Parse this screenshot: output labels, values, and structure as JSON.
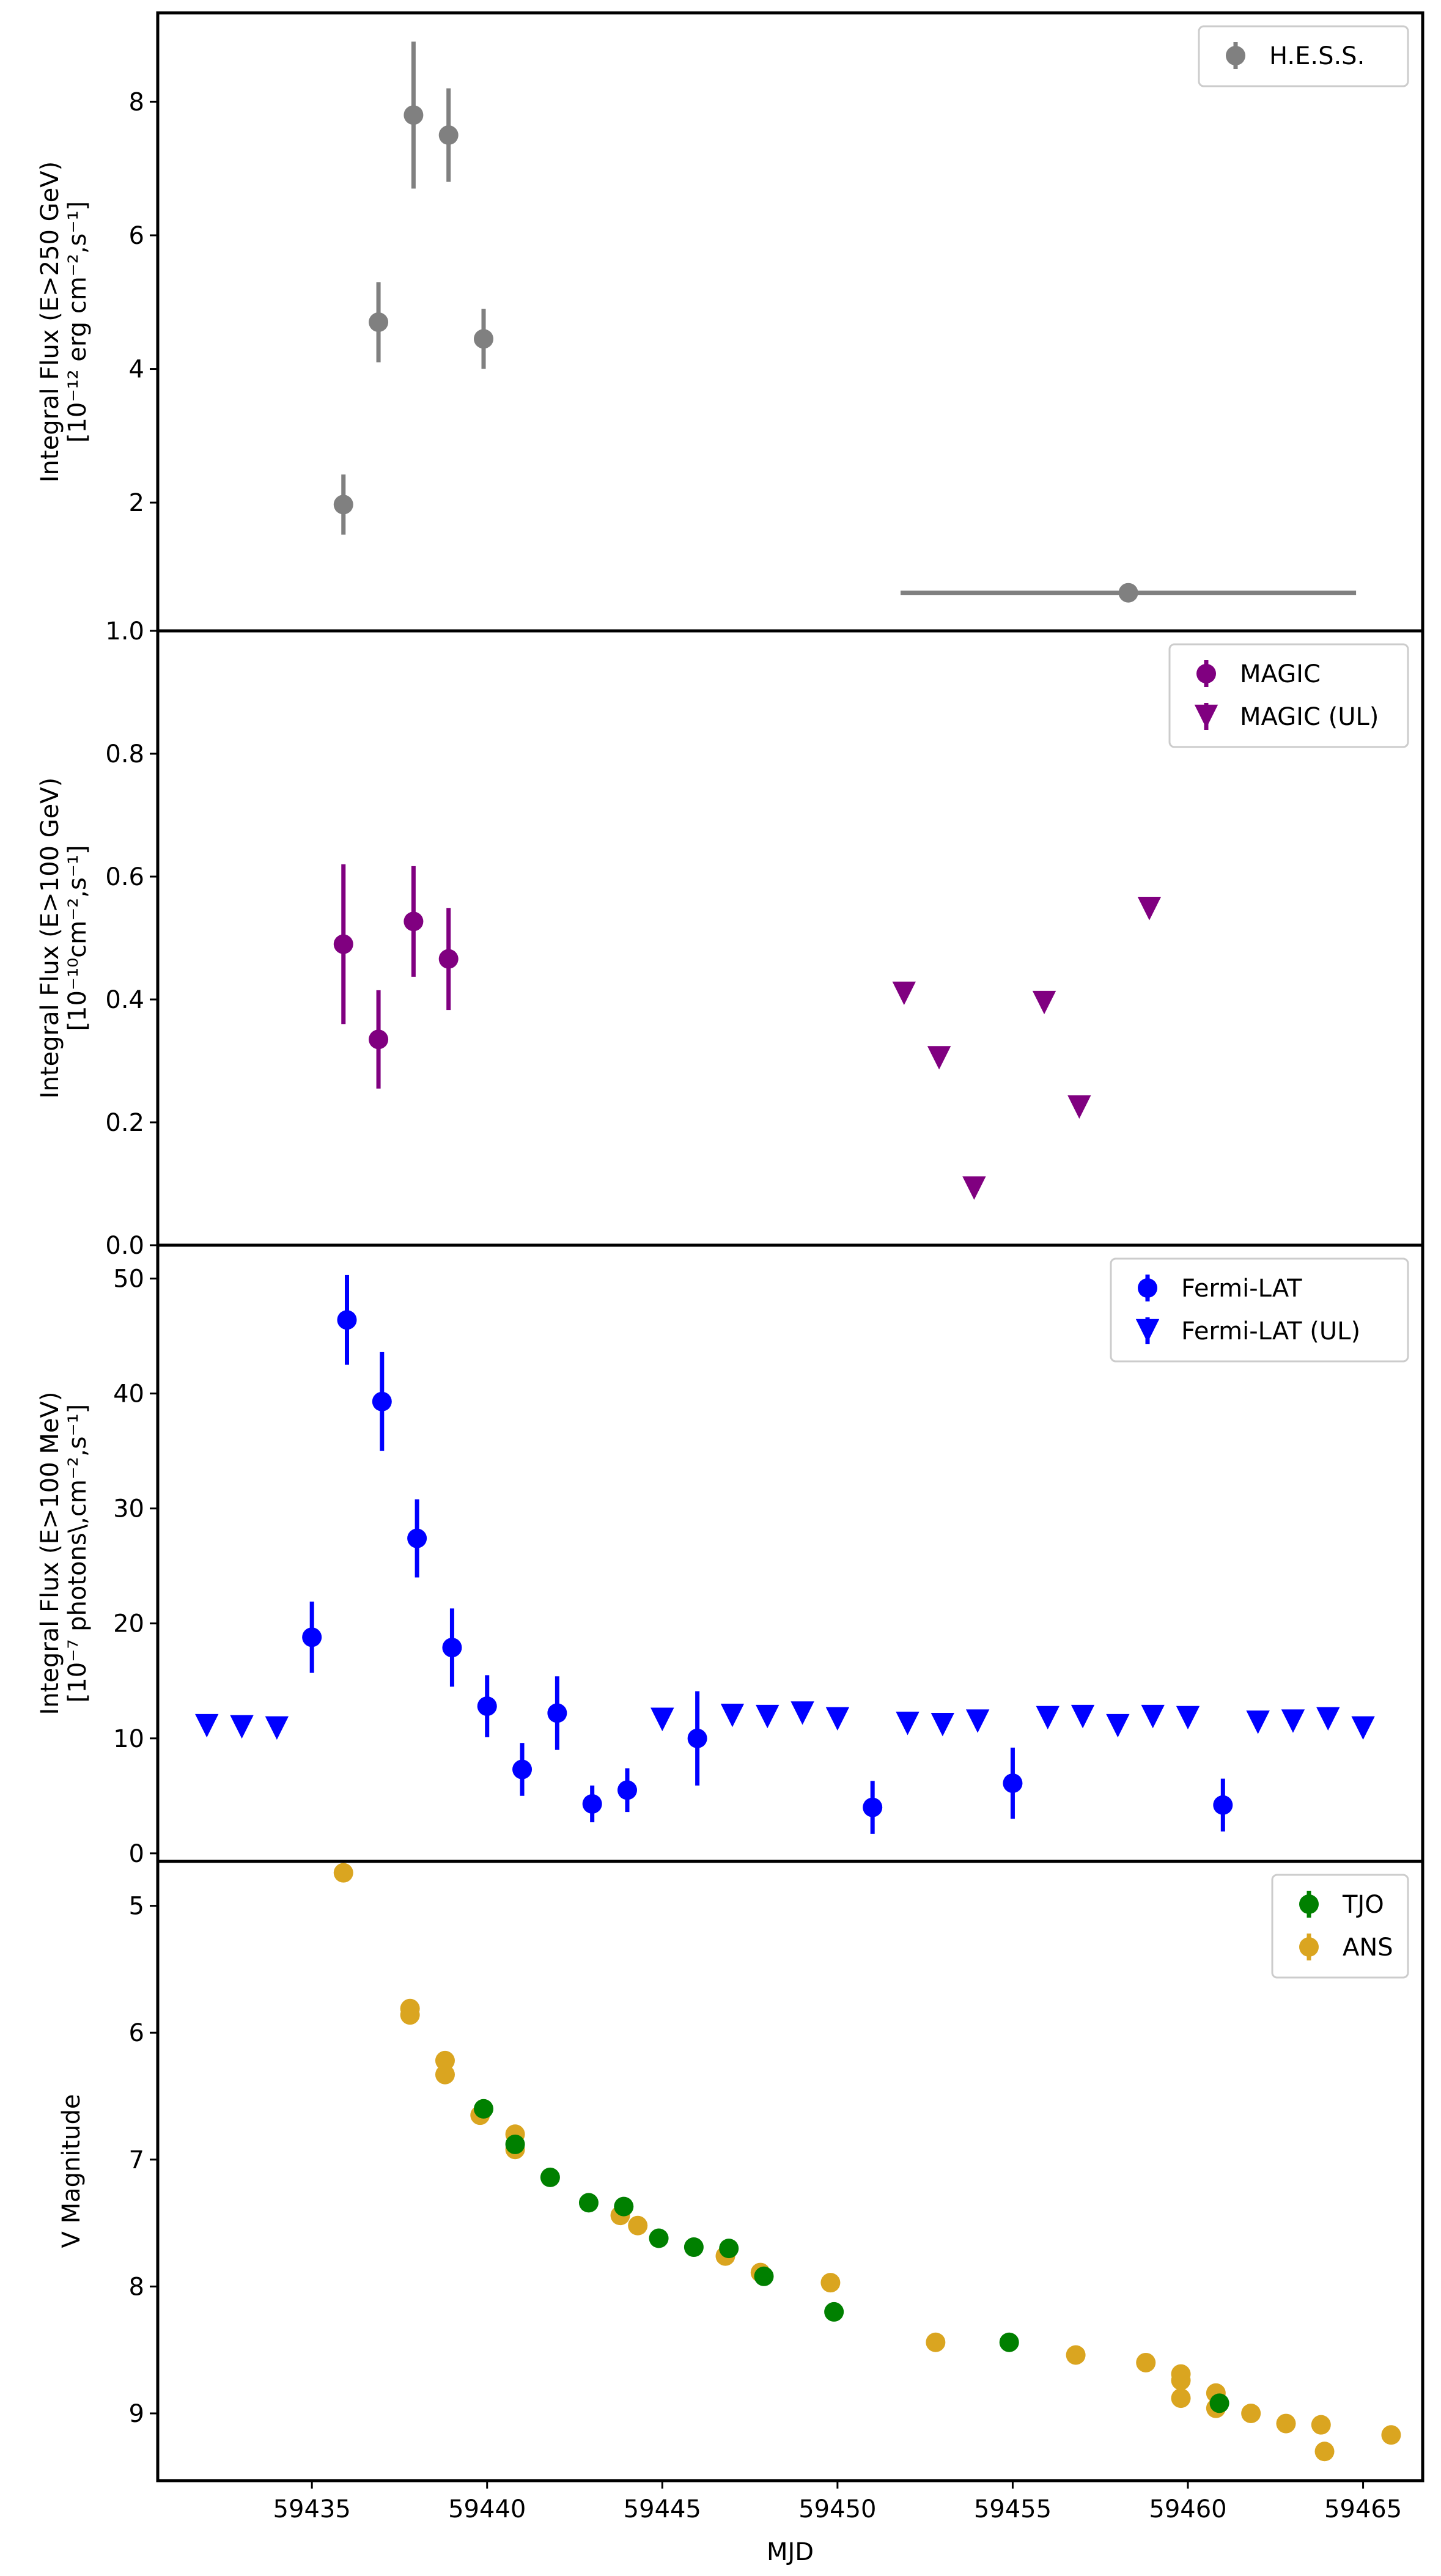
{
  "chart_data": [
    {
      "type": "scatter",
      "ylabel": [
        "Integral Flux (E>250 GeV)",
        "[10⁻¹² erg cm⁻²,s⁻¹]"
      ],
      "ylim": [
        0.08,
        9.33
      ],
      "yticks": [
        2,
        4,
        6,
        8
      ],
      "yticklabels": [
        "2",
        "4",
        "6",
        "8"
      ],
      "legend_position": "top-right",
      "series": [
        {
          "name": "H.E.S.S.",
          "color": "#808080",
          "marker": "circle",
          "points": [
            {
              "x": 59435.9,
              "y": 1.97,
              "yerr": 0.45
            },
            {
              "x": 59436.9,
              "y": 4.7,
              "yerr": 0.6
            },
            {
              "x": 59437.9,
              "y": 7.8,
              "yerr": 1.1
            },
            {
              "x": 59438.9,
              "y": 7.5,
              "yerr": 0.7
            },
            {
              "x": 59439.9,
              "y": 4.45,
              "yerr": 0.45
            },
            {
              "x": 59458.3,
              "y": 0.65,
              "yerr": 0,
              "xerr": 6.5
            }
          ]
        }
      ]
    },
    {
      "type": "scatter",
      "ylabel": [
        "Integral Flux (E>100 GeV)",
        "[10⁻¹⁰cm⁻²,s⁻¹]"
      ],
      "ylim": [
        0,
        1.0
      ],
      "yticks": [
        0,
        0.2,
        0.4,
        0.6,
        0.8,
        1.0
      ],
      "yticklabels": [
        "0.0",
        "0.2",
        "0.4",
        "0.6",
        "0.8",
        "1.0"
      ],
      "legend_position": "top-right",
      "series": [
        {
          "name": "MAGIC",
          "color": "#800080",
          "marker": "circle",
          "points": [
            {
              "x": 59435.9,
              "y": 0.49,
              "yerr": 0.13
            },
            {
              "x": 59436.9,
              "y": 0.335,
              "yerr": 0.08
            },
            {
              "x": 59437.9,
              "y": 0.527,
              "yerr": 0.09
            },
            {
              "x": 59438.9,
              "y": 0.466,
              "yerr": 0.083
            }
          ]
        },
        {
          "name": "MAGIC (UL)",
          "color": "#800080",
          "marker": "triangle-down",
          "points": [
            {
              "x": 59451.9,
              "y": 0.41
            },
            {
              "x": 59452.9,
              "y": 0.305
            },
            {
              "x": 59453.9,
              "y": 0.093
            },
            {
              "x": 59455.9,
              "y": 0.395
            },
            {
              "x": 59456.9,
              "y": 0.225
            },
            {
              "x": 59458.9,
              "y": 0.548
            }
          ]
        }
      ]
    },
    {
      "type": "scatter",
      "ylabel": [
        "Integral Flux (E>100 MeV)",
        "[10⁻⁷ photons\\,cm⁻²,s⁻¹]"
      ],
      "ylim": [
        -0.7,
        52.9
      ],
      "yticks": [
        0,
        10,
        20,
        30,
        40,
        50
      ],
      "yticklabels": [
        "0",
        "10",
        "20",
        "30",
        "40",
        "50"
      ],
      "legend_position": "top-right",
      "series": [
        {
          "name": "Fermi-LAT",
          "color": "#0000ff",
          "marker": "circle",
          "points": [
            {
              "x": 59435,
              "y": 18.8,
              "yerr": 3.1
            },
            {
              "x": 59436,
              "y": 46.4,
              "yerr": 3.9
            },
            {
              "x": 59437,
              "y": 39.3,
              "yerr": 4.3
            },
            {
              "x": 59438,
              "y": 27.4,
              "yerr": 3.4
            },
            {
              "x": 59439,
              "y": 17.9,
              "yerr": 3.4
            },
            {
              "x": 59440,
              "y": 12.8,
              "yerr": 2.7
            },
            {
              "x": 59441,
              "y": 7.3,
              "yerr": 2.3
            },
            {
              "x": 59442,
              "y": 12.2,
              "yerr": 3.2
            },
            {
              "x": 59443,
              "y": 4.3,
              "yerr": 1.6
            },
            {
              "x": 59444,
              "y": 5.5,
              "yerr": 1.9
            },
            {
              "x": 59446,
              "y": 10.0,
              "yerr": 4.1
            },
            {
              "x": 59451,
              "y": 4.0,
              "yerr": 2.3
            },
            {
              "x": 59455,
              "y": 6.1,
              "yerr": 3.1
            },
            {
              "x": 59461,
              "y": 4.2,
              "yerr": 2.3
            }
          ]
        },
        {
          "name": "Fermi-LAT (UL)",
          "color": "#0000ff",
          "marker": "triangle-down",
          "points": [
            {
              "x": 59432,
              "y": 11.1
            },
            {
              "x": 59433,
              "y": 11.0
            },
            {
              "x": 59434,
              "y": 10.9
            },
            {
              "x": 59445,
              "y": 11.65
            },
            {
              "x": 59447,
              "y": 12.0
            },
            {
              "x": 59448,
              "y": 11.9
            },
            {
              "x": 59449,
              "y": 12.2
            },
            {
              "x": 59450,
              "y": 11.7
            },
            {
              "x": 59452,
              "y": 11.3
            },
            {
              "x": 59453,
              "y": 11.2
            },
            {
              "x": 59454,
              "y": 11.5
            },
            {
              "x": 59456,
              "y": 11.8
            },
            {
              "x": 59457,
              "y": 11.9
            },
            {
              "x": 59458,
              "y": 11.1
            },
            {
              "x": 59459,
              "y": 11.9
            },
            {
              "x": 59460,
              "y": 11.8
            },
            {
              "x": 59462,
              "y": 11.4
            },
            {
              "x": 59463,
              "y": 11.5
            },
            {
              "x": 59464,
              "y": 11.7
            },
            {
              "x": 59465,
              "y": 10.9
            }
          ]
        }
      ]
    },
    {
      "type": "scatter",
      "ylabel": [
        "V Magnitude"
      ],
      "ylim": [
        9.53,
        4.65
      ],
      "y_inverted": true,
      "yticks": [
        5,
        6,
        7,
        8,
        9
      ],
      "yticklabels": [
        "5",
        "6",
        "7",
        "8",
        "9"
      ],
      "xlabel": "MJD",
      "xlim": [
        59430.6,
        59466.7
      ],
      "xticks": [
        59435,
        59440,
        59445,
        59450,
        59455,
        59460,
        59465
      ],
      "xticklabels": [
        "59435",
        "59440",
        "59445",
        "59450",
        "59455",
        "59460",
        "59465"
      ],
      "legend_position": "top-right",
      "series": [
        {
          "name": "ANS",
          "color": "#daa520",
          "marker": "circle",
          "points": [
            {
              "x": 59435.9,
              "y": 4.74
            },
            {
              "x": 59437.8,
              "y": 5.81
            },
            {
              "x": 59437.8,
              "y": 5.86
            },
            {
              "x": 59438.8,
              "y": 6.22
            },
            {
              "x": 59438.8,
              "y": 6.33
            },
            {
              "x": 59439.8,
              "y": 6.65
            },
            {
              "x": 59440.8,
              "y": 6.8
            },
            {
              "x": 59440.8,
              "y": 6.92
            },
            {
              "x": 59443.8,
              "y": 7.44
            },
            {
              "x": 59444.3,
              "y": 7.52
            },
            {
              "x": 59446.8,
              "y": 7.76
            },
            {
              "x": 59447.8,
              "y": 7.89
            },
            {
              "x": 59449.8,
              "y": 7.97
            },
            {
              "x": 59452.8,
              "y": 8.44
            },
            {
              "x": 59456.8,
              "y": 8.54
            },
            {
              "x": 59458.8,
              "y": 8.6
            },
            {
              "x": 59459.8,
              "y": 8.69
            },
            {
              "x": 59459.8,
              "y": 8.74
            },
            {
              "x": 59459.8,
              "y": 8.88
            },
            {
              "x": 59460.8,
              "y": 8.84
            },
            {
              "x": 59460.8,
              "y": 8.96
            },
            {
              "x": 59461.8,
              "y": 9.0
            },
            {
              "x": 59462.8,
              "y": 9.08
            },
            {
              "x": 59463.8,
              "y": 9.09
            },
            {
              "x": 59463.9,
              "y": 9.3
            },
            {
              "x": 59465.8,
              "y": 9.17
            }
          ]
        },
        {
          "name": "TJO",
          "color": "#008000",
          "marker": "circle",
          "points": [
            {
              "x": 59439.9,
              "y": 6.6
            },
            {
              "x": 59440.8,
              "y": 6.88
            },
            {
              "x": 59441.8,
              "y": 7.14
            },
            {
              "x": 59442.9,
              "y": 7.34
            },
            {
              "x": 59443.9,
              "y": 7.37
            },
            {
              "x": 59444.9,
              "y": 7.62
            },
            {
              "x": 59445.9,
              "y": 7.69
            },
            {
              "x": 59446.9,
              "y": 7.7
            },
            {
              "x": 59447.9,
              "y": 7.92
            },
            {
              "x": 59449.9,
              "y": 8.2
            },
            {
              "x": 59454.9,
              "y": 8.44
            },
            {
              "x": 59460.9,
              "y": 8.92
            }
          ]
        }
      ],
      "legend_order": [
        "TJO",
        "ANS"
      ]
    }
  ]
}
